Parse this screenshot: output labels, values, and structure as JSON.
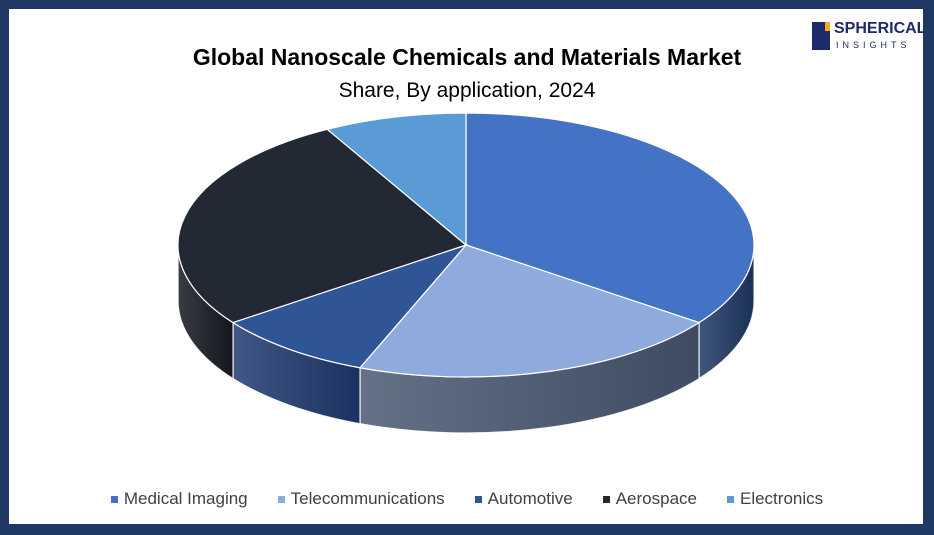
{
  "chart_data": {
    "type": "pie",
    "title": "Global Nanoscale Chemicals and Materials Market",
    "subtitle": "Share, By application, 2024",
    "categories": [
      "Medical Imaging",
      "Telecommunications",
      "Automotive",
      "Aerospace",
      "Electronics"
    ],
    "values": [
      35,
      21,
      9,
      27,
      8
    ],
    "colors": [
      "#4472C4",
      "#8FAADC",
      "#2F5597",
      "#222834",
      "#5B9BD5"
    ],
    "side_colors": [
      "#1f3864",
      "#4a5872",
      "#1f3a70",
      "#161a22",
      "#3c6c9a"
    ],
    "legend_position": "bottom"
  },
  "logo": {
    "line1": "SPHERICAL",
    "line2": "INSIGHTS"
  }
}
